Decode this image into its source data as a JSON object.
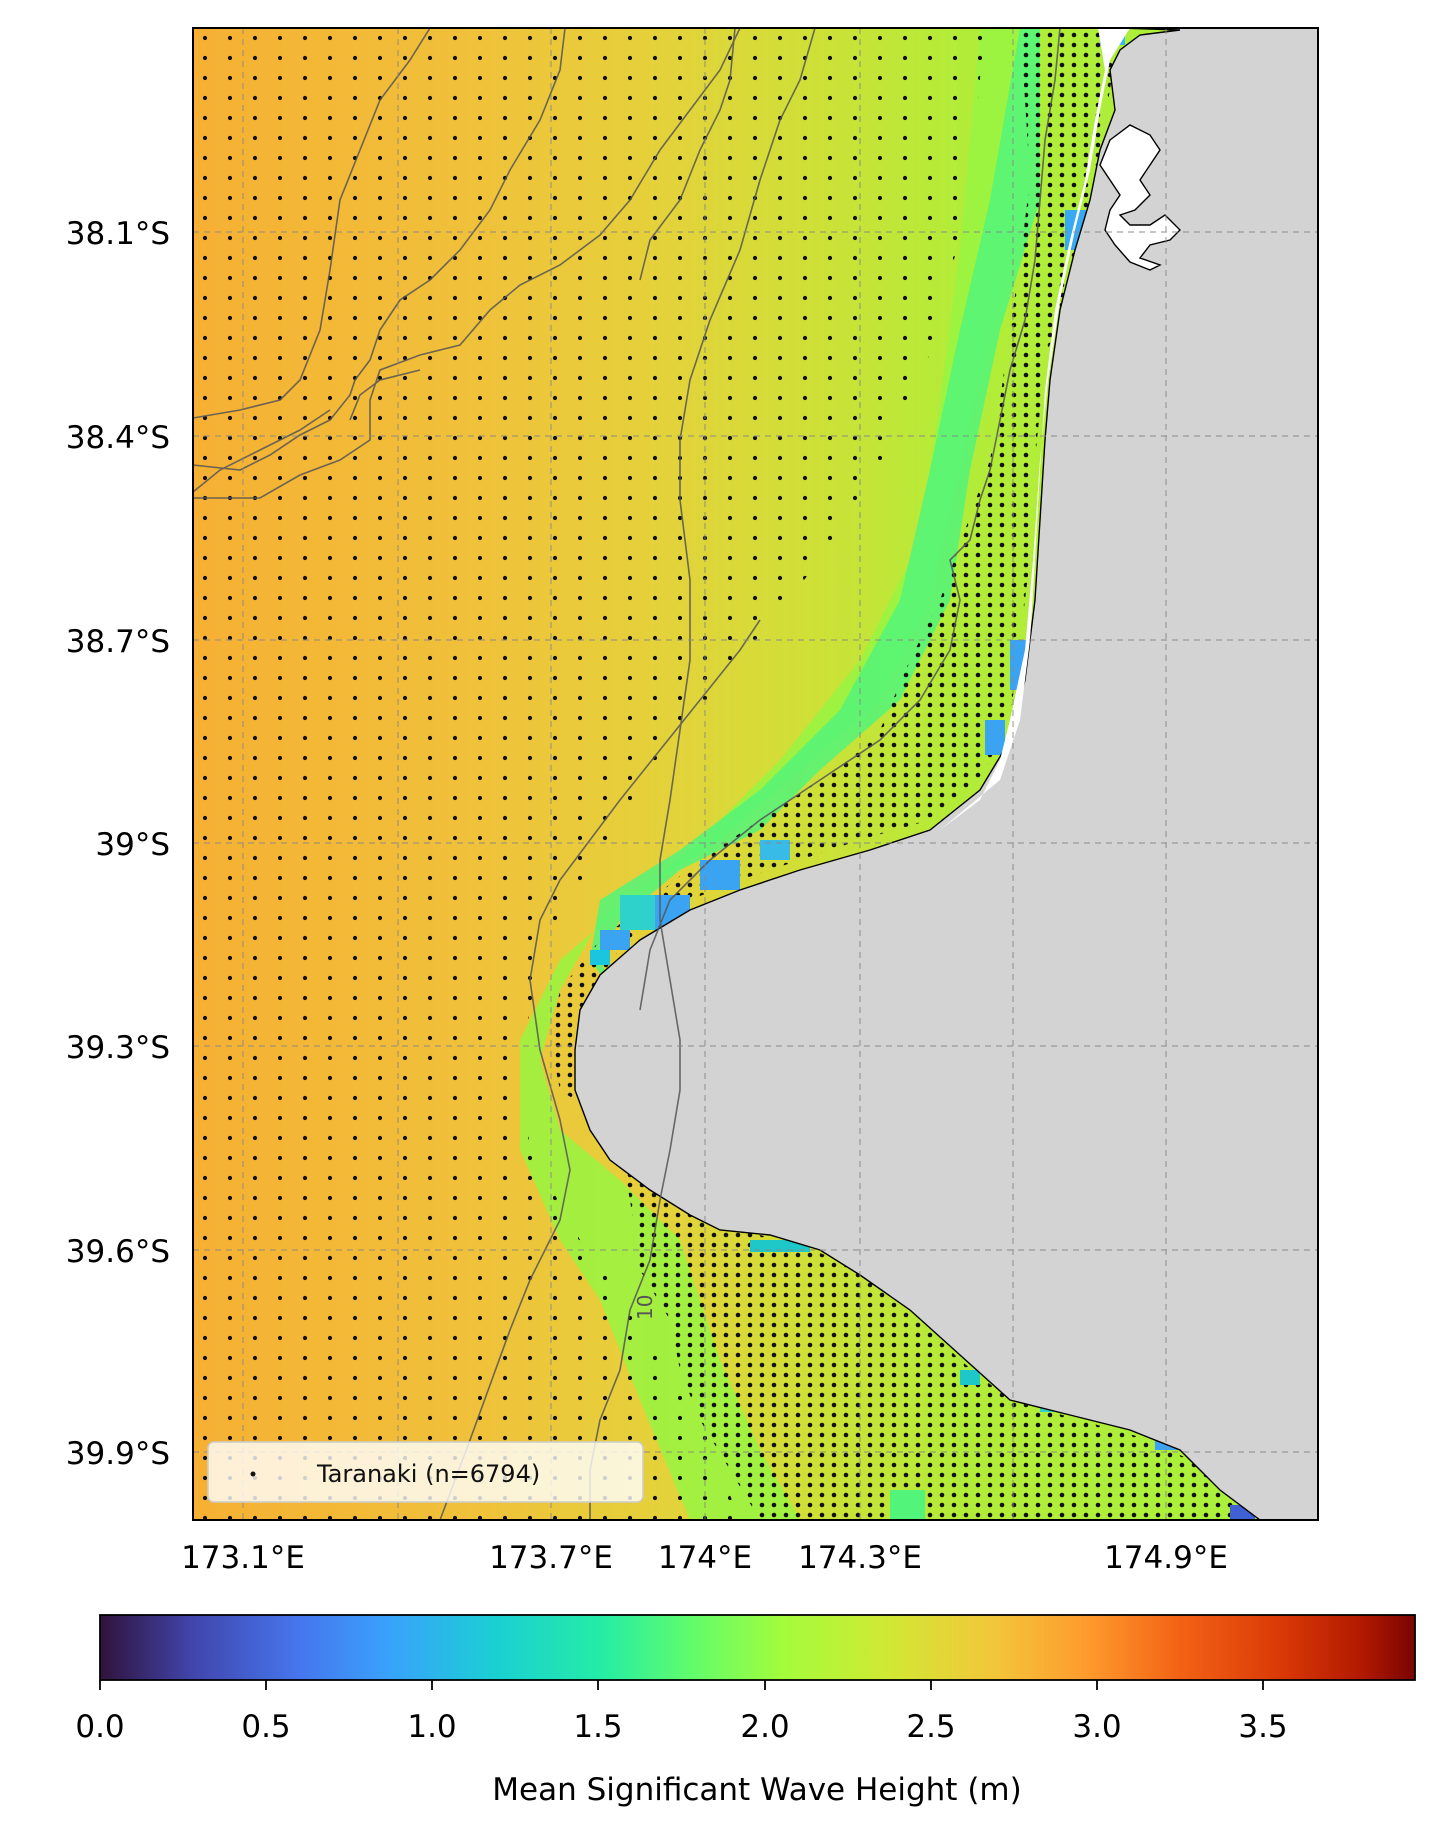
{
  "map": {
    "lat_ticks": [
      "38.1°S",
      "38.4°S",
      "38.7°S",
      "39°S",
      "39.3°S",
      "39.6°S",
      "39.9°S"
    ],
    "lon_ticks": [
      "173.1°E",
      "173.7°E",
      "174°E",
      "174.3°E",
      "174.9°E"
    ],
    "lat_values": [
      -38.1,
      -38.4,
      -38.7,
      -39.0,
      -39.3,
      -39.6,
      -39.9
    ],
    "lon_values": [
      173.1,
      173.7,
      174.0,
      174.3,
      174.9
    ],
    "grid": true,
    "land_color": "#d3d3d3",
    "colormap": "turbo",
    "background_values_note": "",
    "legend": {
      "label": "Taranaki (n=6794)",
      "placement": "bottom-left"
    },
    "contour_label": "10"
  },
  "colorbar": {
    "label": "Mean Significant Wave Height (m)",
    "ticks": [
      "0.0",
      "0.5",
      "1.0",
      "1.5",
      "2.0",
      "2.5",
      "3.0",
      "3.5"
    ],
    "range": [
      0,
      3.95
    ],
    "orientation": "horizontal"
  }
}
